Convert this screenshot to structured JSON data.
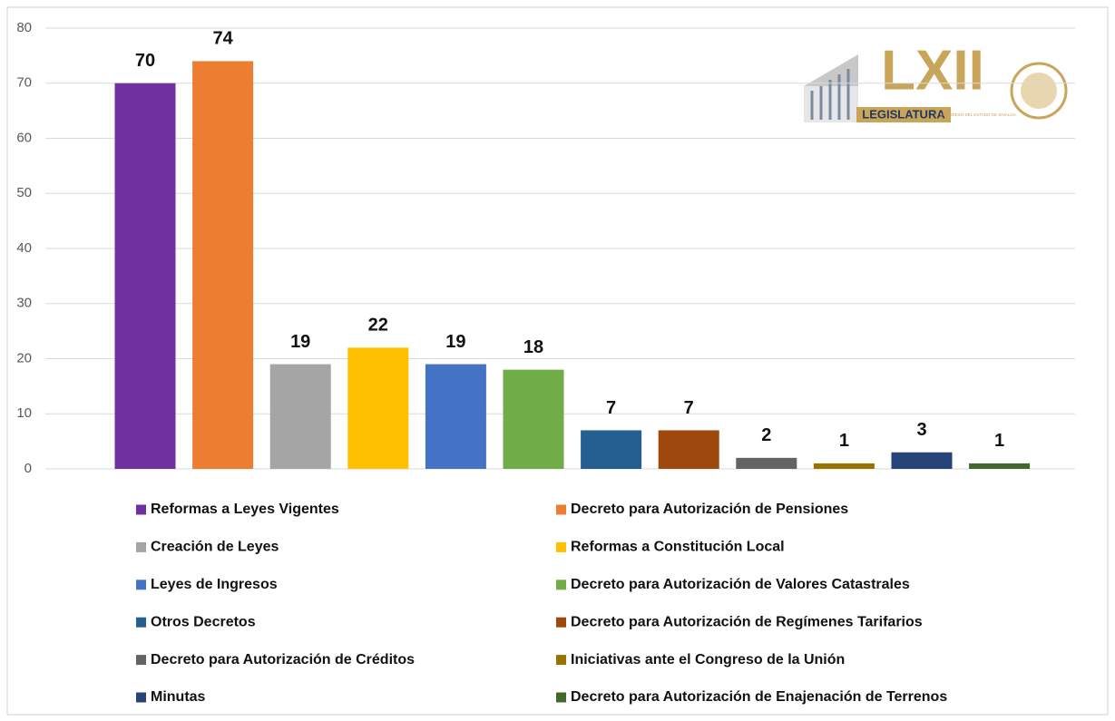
{
  "chart_data": {
    "type": "bar",
    "series": [
      {
        "name": "Reformas a Leyes Vigentes",
        "color": "#7030a0",
        "values": [
          70
        ]
      },
      {
        "name": "Decreto para Autorización de Pensiones",
        "color": "#ed7d31",
        "values": [
          74
        ]
      },
      {
        "name": "Creación de Leyes",
        "color": "#a5a5a5",
        "values": [
          19
        ]
      },
      {
        "name": "Reformas a Constitución Local",
        "color": "#ffc000",
        "values": [
          22
        ]
      },
      {
        "name": "Leyes de Ingresos",
        "color": "#4472c4",
        "values": [
          19
        ]
      },
      {
        "name": "Decreto para Autorización de Valores Catastrales",
        "color": "#70ad47",
        "values": [
          18
        ]
      },
      {
        "name": "Otros Decretos",
        "color": "#255e91",
        "values": [
          7
        ]
      },
      {
        "name": "Decreto para Autorización de Regímenes Tarifarios",
        "color": "#9e480e",
        "values": [
          7
        ]
      },
      {
        "name": "Decreto para Autorización de Créditos",
        "color": "#636363",
        "values": [
          2
        ]
      },
      {
        "name": "Iniciativas ante el Congreso de la Unión",
        "color": "#997300",
        "values": [
          1
        ]
      },
      {
        "name": "Minutas",
        "color": "#264478",
        "values": [
          3
        ]
      },
      {
        "name": "Decreto para Autorización de Enajenación de Terrenos",
        "color": "#43682b",
        "values": [
          1
        ]
      }
    ],
    "ylim": [
      0,
      80
    ],
    "yticks": [
      0,
      10,
      20,
      30,
      40,
      50,
      60,
      70,
      80
    ],
    "grid": true,
    "legend": "bottom",
    "logo": {
      "title": "LXII",
      "subtitle": "LEGISLATURA",
      "caption": "H. CONGRESO DEL ESTADO DE SINALOA"
    }
  }
}
